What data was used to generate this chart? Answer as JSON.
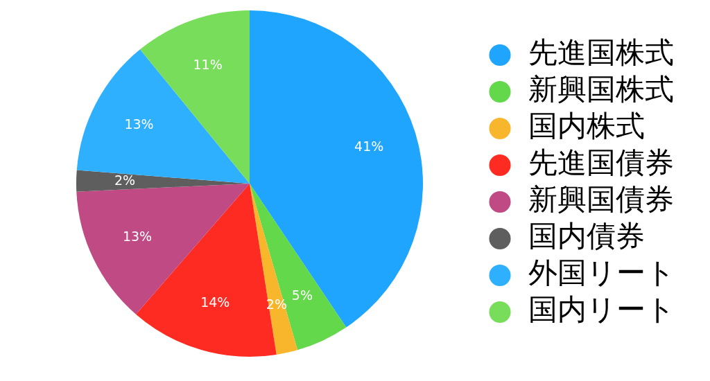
{
  "chart_data": {
    "type": "pie",
    "categories": [
      "先進国株式",
      "新興国株式",
      "国内株式",
      "先進国債券",
      "新興国債券",
      "国内債券",
      "外国リート",
      "国内リート"
    ],
    "values": [
      41,
      5,
      2,
      14,
      13,
      2,
      13,
      11
    ],
    "value_labels": [
      "41%",
      "5%",
      "2%",
      "14%",
      "13%",
      "2%",
      "13%",
      "11%"
    ],
    "colors": [
      "#1fa5fe",
      "#62d84a",
      "#f8b62d",
      "#fe2b22",
      "#bf4a84",
      "#5e5e5e",
      "#2eb0fe",
      "#78dd5a"
    ],
    "legend": "right"
  }
}
